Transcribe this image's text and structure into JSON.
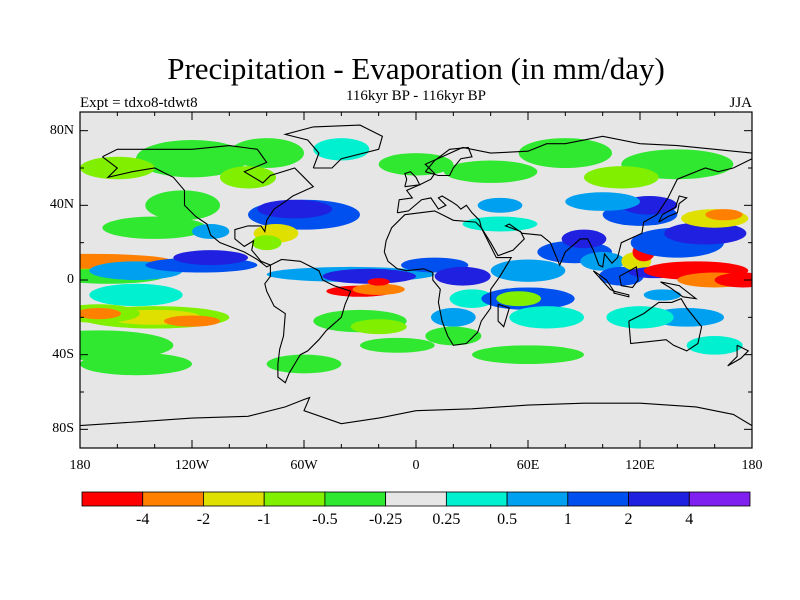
{
  "title": "Precipitation - Evaporation (in mm/day)",
  "subtitle": "116kyr BP - 116kyr BP",
  "experiment_label": "Expt = tdxo8-tdwt8",
  "season_label": "JJA",
  "chart_data": {
    "type": "heatmap",
    "projection": "cylindrical equidistant, longitude 180 to 180, latitude -90 to 90",
    "title": "Precipitation - Evaporation (in mm/day)",
    "y_ticks": [
      "80N",
      "40N",
      "0",
      "40S",
      "80S"
    ],
    "y_tick_values": [
      80,
      40,
      0,
      -40,
      -80
    ],
    "x_ticks": [
      "180",
      "120W",
      "60W",
      "0",
      "60E",
      "120E",
      "180"
    ],
    "x_tick_values": [
      -180,
      -120,
      -60,
      0,
      60,
      120,
      180
    ],
    "xlim": [
      -180,
      180
    ],
    "ylim": [
      -90,
      90
    ],
    "colorbar": {
      "colors": [
        "#ff0000",
        "#ff8000",
        "#e0e000",
        "#80f000",
        "#30e830",
        "#e6e6e6",
        "#00f0d0",
        "#00a0f0",
        "#0050f0",
        "#2020e0",
        "#8020f0"
      ],
      "labels": [
        "-4",
        "-2",
        "-1",
        "-0.5",
        "-0.25",
        "0.25",
        "0.5",
        "1",
        "2",
        "4"
      ]
    },
    "background_color": "#e6e6e6"
  }
}
